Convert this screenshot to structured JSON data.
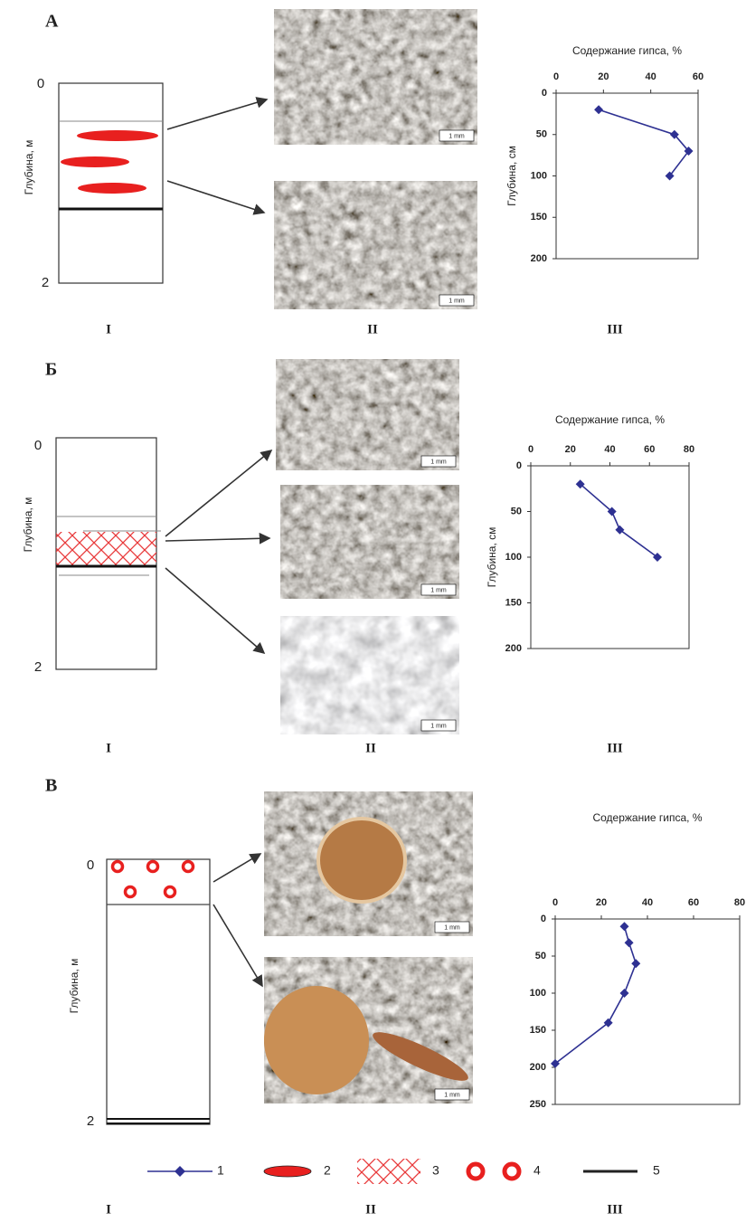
{
  "panels": [
    {
      "letter": "А",
      "depth_labels": [
        "0",
        "2"
      ],
      "depth_axis_label": "Глубина, м",
      "column_labels": [
        "I",
        "II",
        "III"
      ],
      "scale_bars": [
        "1 mm",
        "1 mm"
      ]
    },
    {
      "letter": "Б",
      "depth_labels": [
        "0",
        "2"
      ],
      "depth_axis_label": "Глубина, м",
      "column_labels": [
        "I",
        "II",
        "III"
      ],
      "scale_bars": [
        "1 mm",
        "1 mm",
        "1 mm"
      ]
    },
    {
      "letter": "В",
      "depth_labels": [
        "0",
        "2"
      ],
      "depth_axis_label": "Глубина, м",
      "column_labels": [
        "I",
        "II",
        "III"
      ],
      "scale_bars": [
        "1 mm",
        "1 mm"
      ]
    }
  ],
  "legend": {
    "items": [
      "1",
      "2",
      "3",
      "4",
      "5"
    ]
  },
  "chart_data": [
    {
      "type": "line",
      "title": "Содержание гипса, %",
      "y_label": "Глубина, см",
      "xlim": [
        0,
        60
      ],
      "xticks": [
        0,
        20,
        40,
        60
      ],
      "ylim": [
        0,
        200
      ],
      "yticks": [
        0,
        50,
        100,
        150,
        200
      ],
      "series": [
        {
          "color": "#2e3192",
          "x": [
            18,
            50,
            56,
            48
          ],
          "values": [
            20,
            50,
            70,
            100
          ]
        }
      ]
    },
    {
      "type": "line",
      "title": "Содержание гипса, %",
      "y_label": "Глубина, см",
      "xlim": [
        0,
        80
      ],
      "xticks": [
        0,
        20,
        40,
        60,
        80
      ],
      "ylim": [
        0,
        200
      ],
      "yticks": [
        0,
        50,
        100,
        150,
        200
      ],
      "series": [
        {
          "color": "#2e3192",
          "x": [
            25,
            41,
            45,
            64
          ],
          "values": [
            20,
            50,
            70,
            100
          ]
        }
      ]
    },
    {
      "type": "line",
      "title": "Содержание гипса, %",
      "xlim": [
        0,
        80
      ],
      "xticks": [
        0,
        20,
        40,
        60,
        80
      ],
      "ylim": [
        0,
        250
      ],
      "yticks": [
        0,
        50,
        100,
        150,
        200,
        250
      ],
      "series": [
        {
          "color": "#2e3192",
          "x": [
            30,
            32,
            35,
            30,
            23,
            0
          ],
          "values": [
            10,
            32,
            60,
            100,
            140,
            195
          ]
        }
      ]
    }
  ]
}
